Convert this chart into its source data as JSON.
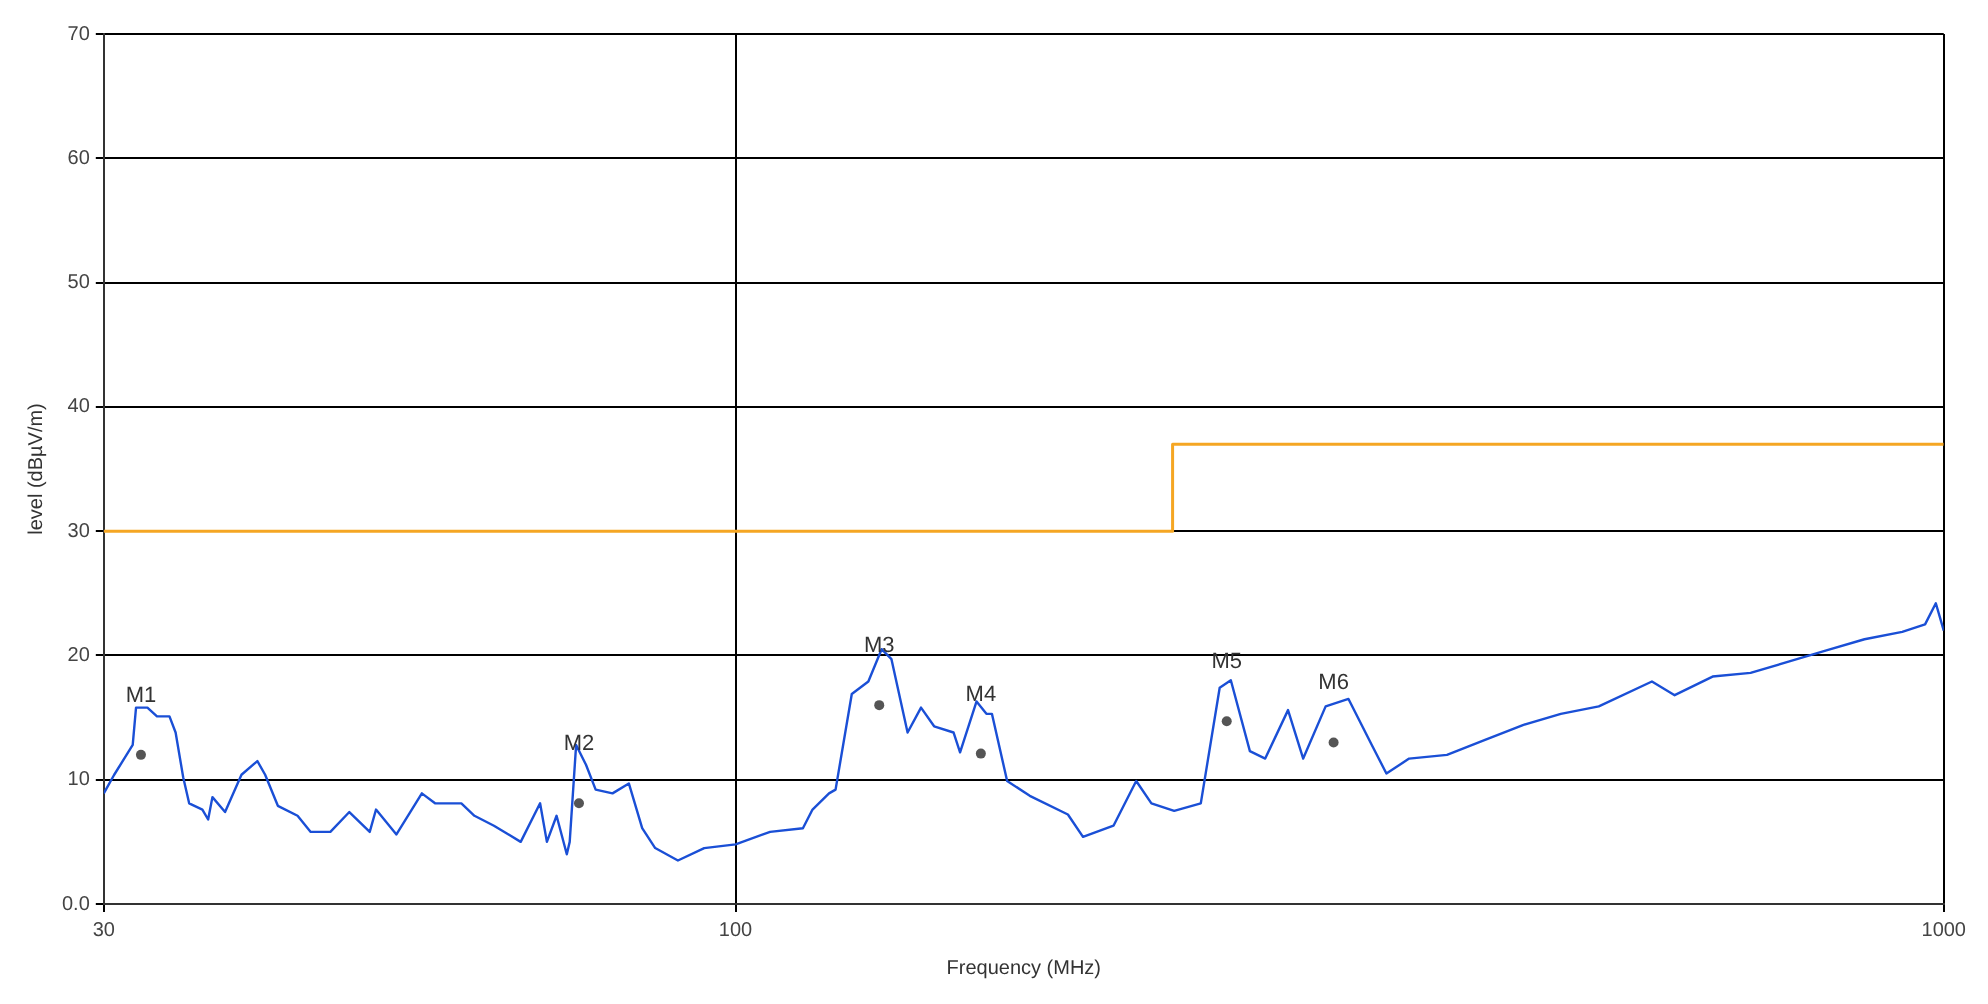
{
  "chart_data": {
    "type": "line",
    "xlabel": "Frequency (MHz)",
    "ylabel": "level (dBµV/m)",
    "log": "x",
    "xlim": [
      30,
      1000
    ],
    "xticks": [
      30,
      100,
      1000
    ],
    "ylim": [
      0,
      70
    ],
    "yticks": [
      {
        "value": 0,
        "label": "0.0"
      },
      10,
      20,
      30,
      40,
      50,
      60,
      70
    ],
    "grid": true,
    "legend": false,
    "series": [
      {
        "type": "line",
        "color": "#1a4fd6",
        "marker": "none",
        "x": [
          30,
          30.6,
          31.7,
          31.9,
          32.6,
          33.2,
          34.0,
          34.4,
          34.9,
          35.3,
          36.2,
          36.6,
          36.9,
          37.8,
          39.0,
          40.2,
          40.8,
          41.8,
          43.4,
          44.5,
          46.2,
          47.9,
          49.8,
          50.4,
          52.4,
          55.0,
          56.4,
          59.3,
          60.8,
          63.1,
          66.4,
          68.9,
          69.8,
          71.1,
          72.5,
          72.9,
          73.8,
          75.2,
          76.6,
          79.1,
          81.6,
          83.7,
          85.8,
          89.6,
          94.2,
          100,
          106.8,
          113.7,
          115.8,
          119.5,
          121.0,
          124.8,
          128.8,
          132.1,
          134.6,
          138.8,
          142.4,
          146.0,
          151.5,
          153.4,
          158.3,
          161.3,
          163,
          167.8,
          175.2,
          188.4,
          193.9,
          205.5,
          214.6,
          220.9,
          230.7,
          242.7,
          251.6,
          257.0,
          266.5,
          274.4,
          286.6,
          295.0,
          307.9,
          321.6,
          335.8,
          345.7,
          361.0,
          388.0,
          417.2,
          448.4,
          482.0,
          518.2,
          573.4,
          598.8,
          643.7,
          692.0,
          743.9,
          799.6,
          859.8,
          923.9,
          965.0,
          985,
          1000
        ],
        "values": [
          8.9,
          10.4,
          12.8,
          15.8,
          15.8,
          15.1,
          15.1,
          13.8,
          10.2,
          8.1,
          7.6,
          6.8,
          8.6,
          7.4,
          10.4,
          11.5,
          10.4,
          7.9,
          7.1,
          5.8,
          5.8,
          7.4,
          5.8,
          7.6,
          5.6,
          8.9,
          8.1,
          8.1,
          7.1,
          6.3,
          5.0,
          8.1,
          5.0,
          7.1,
          4.0,
          5.0,
          12.8,
          11.2,
          9.2,
          8.9,
          9.7,
          6.1,
          4.5,
          3.5,
          4.5,
          4.8,
          5.8,
          6.1,
          7.6,
          8.9,
          9.2,
          16.9,
          17.9,
          20.5,
          19.7,
          13.8,
          15.8,
          14.3,
          13.8,
          12.2,
          16.3,
          15.3,
          15.3,
          9.9,
          8.7,
          7.2,
          5.4,
          6.3,
          9.9,
          8.1,
          7.5,
          8.1,
          17.4,
          18.0,
          12.3,
          11.7,
          15.6,
          11.7,
          15.9,
          16.5,
          12.9,
          10.5,
          11.7,
          12.0,
          13.2,
          14.4,
          15.3,
          15.9,
          17.9,
          16.8,
          18.3,
          18.6,
          19.5,
          20.4,
          21.3,
          21.9,
          22.5,
          24.2,
          22.0
        ]
      },
      {
        "type": "step",
        "color": "#f5a623",
        "marker": "none",
        "x": [
          30,
          230,
          230,
          1000
        ],
        "values": [
          30,
          30,
          37,
          37
        ]
      },
      {
        "type": "scatter",
        "color": "#555555",
        "marker": "circle",
        "x": [
          32.2,
          74.2,
          131.5,
          159.6,
          255,
          312.6
        ],
        "values": [
          12.0,
          8.1,
          16.0,
          12.1,
          14.7,
          13.0
        ]
      }
    ],
    "annotations": [
      {
        "text": "M1",
        "x": 32.2,
        "y": 12.0
      },
      {
        "text": "M2",
        "x": 74.2,
        "y": 8.1
      },
      {
        "text": "M3",
        "x": 131.5,
        "y": 16.0
      },
      {
        "text": "M4",
        "x": 159.6,
        "y": 12.1
      },
      {
        "text": "M5",
        "x": 255,
        "y": 14.7
      },
      {
        "text": "M6",
        "x": 312.6,
        "y": 13.0
      }
    ]
  }
}
